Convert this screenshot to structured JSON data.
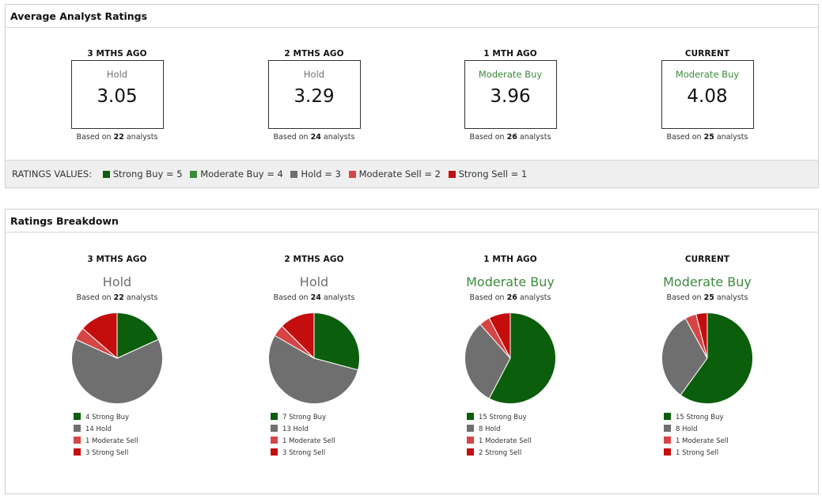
{
  "average_panel": {
    "title": "Average Analyst Ratings",
    "columns": [
      {
        "period": "3 MTHS AGO",
        "rating": "Hold",
        "rating_color": "#6f6f6f",
        "value": "3.05",
        "based_prefix": "Based on",
        "analysts": "22",
        "based_suffix": "analysts"
      },
      {
        "period": "2 MTHS AGO",
        "rating": "Hold",
        "rating_color": "#6f6f6f",
        "value": "3.29",
        "based_prefix": "Based on",
        "analysts": "24",
        "based_suffix": "analysts"
      },
      {
        "period": "1 MTH AGO",
        "rating": "Moderate Buy",
        "rating_color": "#3c8a3c",
        "value": "3.96",
        "based_prefix": "Based on",
        "analysts": "26",
        "based_suffix": "analysts"
      },
      {
        "period": "CURRENT",
        "rating": "Moderate Buy",
        "rating_color": "#3c8a3c",
        "value": "4.08",
        "based_prefix": "Based on",
        "analysts": "25",
        "based_suffix": "analysts"
      }
    ],
    "ratings_values": {
      "label": "RATINGS VALUES:",
      "items": [
        {
          "text": "Strong Buy = 5",
          "color": "#0b5e0b"
        },
        {
          "text": "Moderate Buy = 4",
          "color": "#3c8a3c"
        },
        {
          "text": "Hold = 3",
          "color": "#6f6f6f"
        },
        {
          "text": "Moderate Sell = 2",
          "color": "#d64545"
        },
        {
          "text": "Strong Sell = 1",
          "color": "#c40d0d"
        }
      ]
    }
  },
  "breakdown_panel": {
    "title": "Ratings Breakdown"
  },
  "chart_data": [
    {
      "type": "pie",
      "title": "3 MTHS AGO",
      "subtitle": "Hold",
      "subtitle_color": "#6f6f6f",
      "based_prefix": "Based on",
      "analysts": "22",
      "based_suffix": "analysts",
      "slices": [
        {
          "label": "4 Strong Buy",
          "value": 4,
          "color": "#0b5e0b"
        },
        {
          "label": "14 Hold",
          "value": 14,
          "color": "#6f6f6f"
        },
        {
          "label": "1 Moderate Sell",
          "value": 1,
          "color": "#d64545"
        },
        {
          "label": "3 Strong Sell",
          "value": 3,
          "color": "#c40d0d"
        }
      ]
    },
    {
      "type": "pie",
      "title": "2 MTHS AGO",
      "subtitle": "Hold",
      "subtitle_color": "#6f6f6f",
      "based_prefix": "Based on",
      "analysts": "24",
      "based_suffix": "analysts",
      "slices": [
        {
          "label": "7 Strong Buy",
          "value": 7,
          "color": "#0b5e0b"
        },
        {
          "label": "13 Hold",
          "value": 13,
          "color": "#6f6f6f"
        },
        {
          "label": "1 Moderate Sell",
          "value": 1,
          "color": "#d64545"
        },
        {
          "label": "3 Strong Sell",
          "value": 3,
          "color": "#c40d0d"
        }
      ]
    },
    {
      "type": "pie",
      "title": "1 MTH AGO",
      "subtitle": "Moderate Buy",
      "subtitle_color": "#3c8a3c",
      "based_prefix": "Based on",
      "analysts": "26",
      "based_suffix": "analysts",
      "slices": [
        {
          "label": "15 Strong Buy",
          "value": 15,
          "color": "#0b5e0b"
        },
        {
          "label": "8 Hold",
          "value": 8,
          "color": "#6f6f6f"
        },
        {
          "label": "1 Moderate Sell",
          "value": 1,
          "color": "#d64545"
        },
        {
          "label": "2 Strong Sell",
          "value": 2,
          "color": "#c40d0d"
        }
      ]
    },
    {
      "type": "pie",
      "title": "CURRENT",
      "subtitle": "Moderate Buy",
      "subtitle_color": "#3c8a3c",
      "based_prefix": "Based on",
      "analysts": "25",
      "based_suffix": "analysts",
      "slices": [
        {
          "label": "15 Strong Buy",
          "value": 15,
          "color": "#0b5e0b"
        },
        {
          "label": "8 Hold",
          "value": 8,
          "color": "#6f6f6f"
        },
        {
          "label": "1 Moderate Sell",
          "value": 1,
          "color": "#d64545"
        },
        {
          "label": "1 Strong Sell",
          "value": 1,
          "color": "#c40d0d"
        }
      ]
    }
  ]
}
